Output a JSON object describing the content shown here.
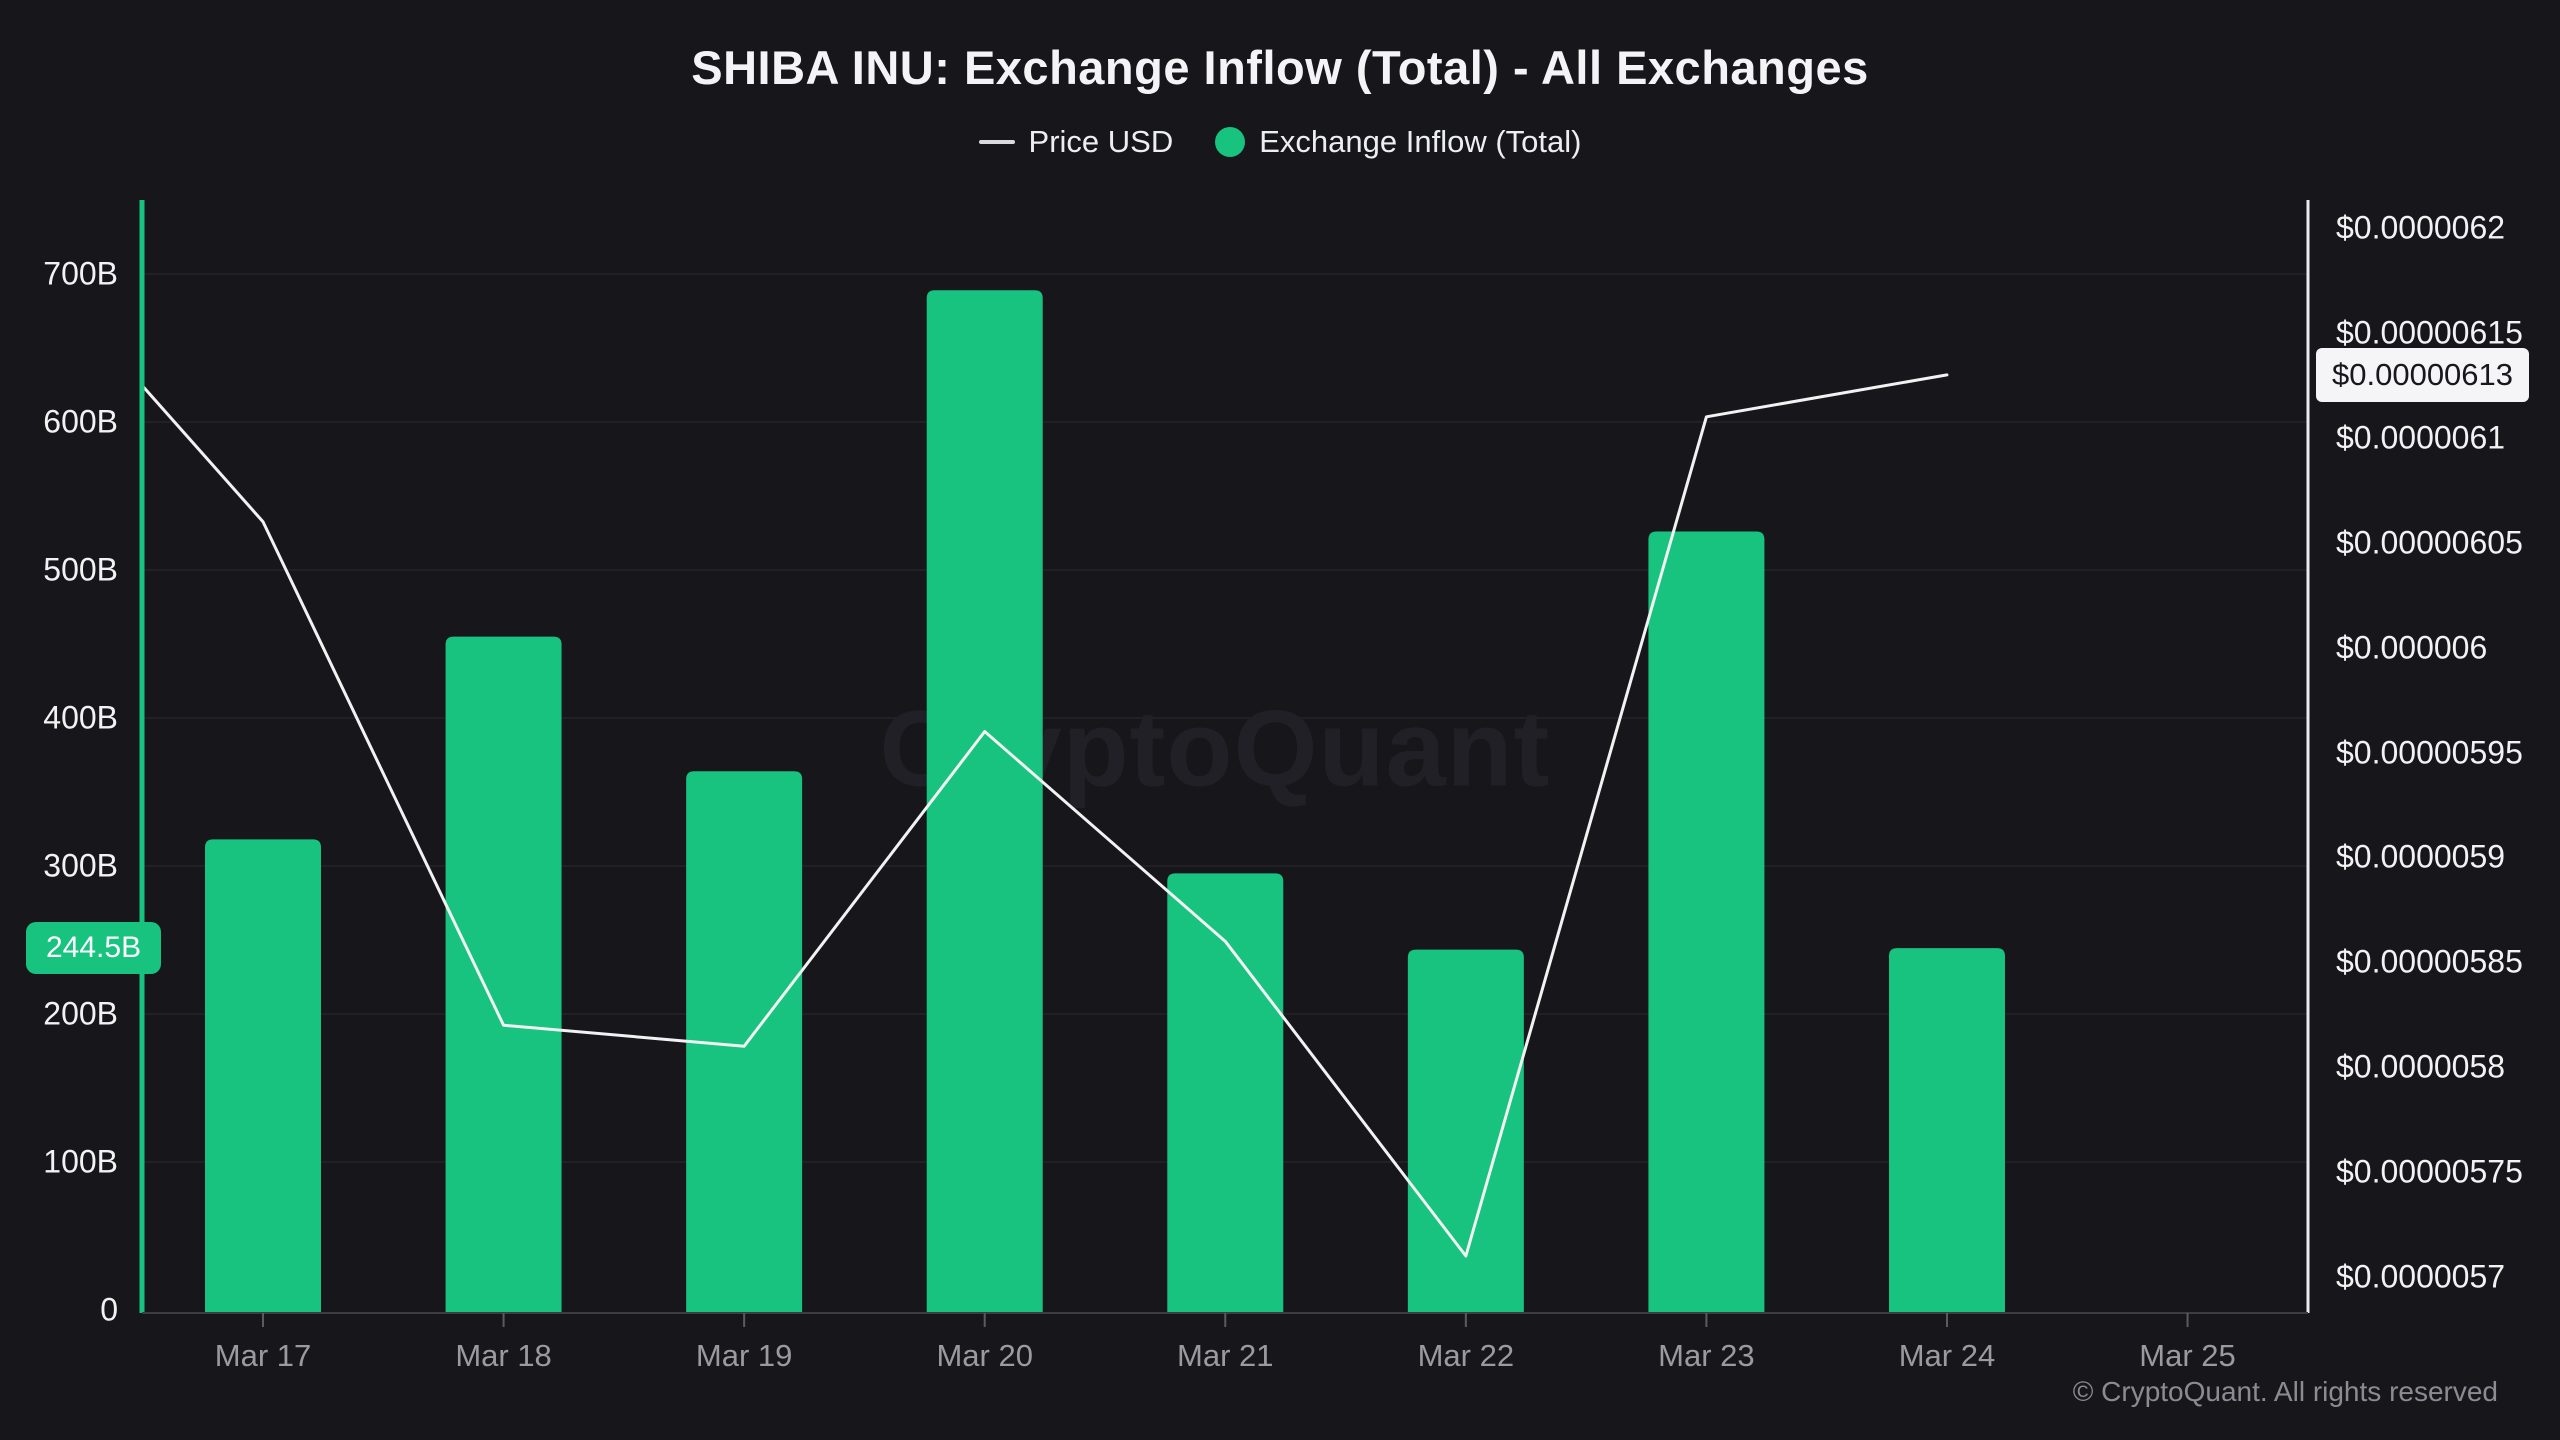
{
  "title": "SHIBA INU: Exchange Inflow (Total) - All Exchanges",
  "legend": {
    "price_label": "Price USD",
    "inflow_label": "Exchange Inflow (Total)"
  },
  "watermark": "CryptoQuant",
  "footer": {
    "copyright": "© CryptoQuant. All rights reserved"
  },
  "colors": {
    "background": "#17171b",
    "bar_green": "#17c37e",
    "price_line": "#f2f2f3",
    "grid": "#232329",
    "left_axis_line": "#17c37e",
    "right_axis_line": "#ececee",
    "bottom_axis_line": "#3c3c43",
    "tick_mark": "#5a5a62",
    "date_label": "#9a9aa1",
    "axis_label": "#f2f2f3",
    "watermark_color": "#202026",
    "price_badge_bg": "#f5f5f7",
    "price_badge_text": "#18181c"
  },
  "chart_data": {
    "type": "bar+line combo",
    "title": "SHIBA INU: Exchange Inflow (Total) - All Exchanges",
    "categories": [
      "Mar 17",
      "Mar 18",
      "Mar 19",
      "Mar 20",
      "Mar 21",
      "Mar 22",
      "Mar 23",
      "Mar 24",
      "Mar 25"
    ],
    "series": [
      {
        "name": "Exchange Inflow (Total)",
        "type": "bar",
        "axis": "left",
        "unit": "billions of SHIB",
        "values": [
          318,
          455,
          364,
          689,
          295,
          243.5,
          526,
          244.5,
          null
        ]
      },
      {
        "name": "Price USD",
        "type": "line",
        "axis": "right",
        "unit": "USD",
        "values": [
          6.06e-06,
          5.82e-06,
          5.81e-06,
          5.96e-06,
          5.86e-06,
          5.71e-06,
          6.11e-06,
          6.13e-06,
          null
        ],
        "edge_start_value": 6.125e-06
      }
    ],
    "left_axis": {
      "title": "Exchange Inflow (Total)",
      "range": [
        0,
        750
      ],
      "ticks": [
        {
          "label": "700B",
          "value": 700
        },
        {
          "label": "600B",
          "value": 600
        },
        {
          "label": "500B",
          "value": 500
        },
        {
          "label": "400B",
          "value": 400
        },
        {
          "label": "300B",
          "value": 300
        },
        {
          "label": "200B",
          "value": 200
        },
        {
          "label": "100B",
          "value": 100
        },
        {
          "label": "0",
          "value": 0
        }
      ],
      "current_badge": {
        "label": "244.5B",
        "value": 244.5
      }
    },
    "right_axis": {
      "title": "Price USD",
      "range": [
        5.7e-06,
        6.2e-06
      ],
      "ticks": [
        {
          "label": "$0.0000062",
          "value": 6.2e-06
        },
        {
          "label": "$0.00000615",
          "value": 6.15e-06
        },
        {
          "label": "$0.0000061",
          "value": 6.1e-06
        },
        {
          "label": "$0.00000605",
          "value": 6.05e-06
        },
        {
          "label": "$0.000006",
          "value": 6e-06
        },
        {
          "label": "$0.00000595",
          "value": 5.95e-06
        },
        {
          "label": "$0.0000059",
          "value": 5.9e-06
        },
        {
          "label": "$0.00000585",
          "value": 5.85e-06
        },
        {
          "label": "$0.0000058",
          "value": 5.8e-06
        },
        {
          "label": "$0.00000575",
          "value": 5.75e-06
        },
        {
          "label": "$0.0000057",
          "value": 5.7e-06
        }
      ],
      "current_badge": {
        "label": "$0.00000613",
        "value": 6.13e-06
      }
    },
    "grid": "horizontal only, very faint",
    "legend_position": "top center"
  }
}
